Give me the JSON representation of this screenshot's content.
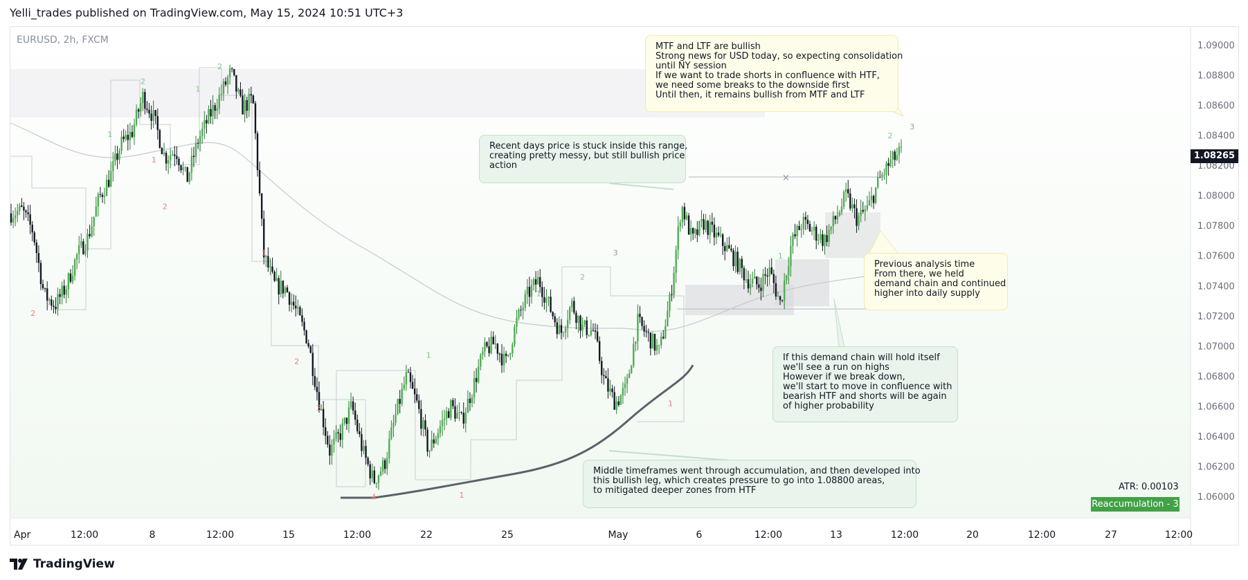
{
  "header": {
    "text": "Yelli_trades published on TradingView.com, May 15, 2024 10:51 UTC+3"
  },
  "symbol": {
    "text": "EURUSD, 2h, FXCM"
  },
  "footer": {
    "brand": "TradingView"
  },
  "price_badge": "1.08265",
  "atr": "ATR: 0.00103",
  "indicator_badge": "Reaccumulation - 3",
  "notes": {
    "mtf": "MTF and LTF are bullish\nStrong news for USD today, so expecting consolidation\nuntil NY session\nIf we want to trade shorts in confluence with HTF,\nwe need some breaks to the downside first\nUntil then, it remains bullish from MTF and LTF",
    "range": "Recent days price is stuck inside this range,\ncreating pretty messy, but still bullish price\naction",
    "previous": "Previous analysis time\nFrom there, we held\ndemand chain and continued\nhigher into daily supply",
    "demand": "If this demand chain will hold itself\nwe'll see a run on highs\nHowever if we break down,\nwe'll start to move in confluence with\nbearish HTF and shorts will be again\nof higher probability",
    "middle": "Middle timeframes went through accumulation, and then developed into\nthis bullish leg, which creates pressure to go into 1.08800 areas,\nto mitigated deeper zones from HTF"
  },
  "colors": {
    "up": "#2e7d32",
    "down": "#131722",
    "wave_green": "#81c784",
    "wave_red": "#ef7b7b",
    "badge_green": "#43a047"
  },
  "chart_data": {
    "type": "candlestick",
    "title": "EURUSD, 2h, FXCM",
    "ylim": [
      1.0585,
      1.0915
    ],
    "y_ticks": [
      "1.09000",
      "1.08800",
      "1.08600",
      "1.08400",
      "1.08200",
      "1.08000",
      "1.07800",
      "1.07600",
      "1.07400",
      "1.07200",
      "1.07000",
      "1.06800",
      "1.06600",
      "1.06400",
      "1.06200",
      "1.06000"
    ],
    "x_ticks": [
      "Apr",
      "12:00",
      "8",
      "12:00",
      "15",
      "12:00",
      "22",
      "25",
      "May",
      "6",
      "12:00",
      "13",
      "12:00",
      "20",
      "12:00",
      "27",
      "12:00"
    ],
    "path_points": [
      1.0788,
      1.079,
      1.0776,
      1.0734,
      1.0727,
      1.0739,
      1.076,
      1.0772,
      1.0798,
      1.0812,
      1.0834,
      1.0842,
      1.0866,
      1.0851,
      1.0825,
      1.083,
      1.081,
      1.0836,
      1.0852,
      1.0866,
      1.0882,
      1.0858,
      1.0864,
      1.076,
      1.074,
      1.0738,
      1.0722,
      1.0704,
      1.0664,
      1.063,
      1.0642,
      1.066,
      1.063,
      1.061,
      1.0622,
      1.0654,
      1.068,
      1.066,
      1.063,
      1.0646,
      1.066,
      1.065,
      1.0672,
      1.0696,
      1.0702,
      1.0688,
      1.0716,
      1.0734,
      1.0744,
      1.0726,
      1.0708,
      1.0728,
      1.0712,
      1.071,
      1.0676,
      1.0662,
      1.0672,
      1.0716,
      1.0706,
      1.0696,
      1.0732,
      1.0794,
      1.077,
      1.0782,
      1.0774,
      1.0766,
      1.0756,
      1.0744,
      1.074,
      1.075,
      1.0728,
      1.0768,
      1.0782,
      1.0776,
      1.077,
      1.0784,
      1.08,
      1.0784,
      1.0792,
      1.081,
      1.0822,
      1.0829
    ],
    "waves": [
      {
        "label": "2",
        "price": 1.0874,
        "x_index": 12,
        "color": "green"
      },
      {
        "label": "1",
        "price": 1.0839,
        "x_index": 9,
        "color": "green"
      },
      {
        "label": "1",
        "price": 1.0822,
        "x_index": 13,
        "color": "red"
      },
      {
        "label": "2",
        "price": 1.0791,
        "x_index": 14,
        "color": "red"
      },
      {
        "label": "1",
        "price": 1.0869,
        "x_index": 17,
        "color": "green"
      },
      {
        "label": "2",
        "price": 1.0884,
        "x_index": 19,
        "color": "green"
      },
      {
        "label": "2",
        "price": 1.072,
        "x_index": 2,
        "color": "red"
      },
      {
        "label": "1",
        "price": 1.076,
        "x_index": 23,
        "color": "red"
      },
      {
        "label": "2",
        "price": 1.0688,
        "x_index": 26,
        "color": "red"
      },
      {
        "label": "3",
        "price": 1.0657,
        "x_index": 28,
        "color": "red"
      },
      {
        "label": "4",
        "price": 1.0598,
        "x_index": 33,
        "color": "red"
      },
      {
        "label": "1",
        "price": 1.0692,
        "x_index": 38,
        "color": "green"
      },
      {
        "label": "1",
        "price": 1.0599,
        "x_index": 41,
        "color": "red"
      },
      {
        "label": "1",
        "price": 1.0733,
        "x_index": 48,
        "color": "green"
      },
      {
        "label": "2",
        "price": 1.0744,
        "x_index": 52,
        "color": "green"
      },
      {
        "label": "3",
        "price": 1.076,
        "x_index": 55,
        "color": "gray"
      },
      {
        "label": "1",
        "price": 1.066,
        "x_index": 60,
        "color": "red"
      },
      {
        "label": "1",
        "price": 1.0758,
        "x_index": 70,
        "color": "green"
      },
      {
        "label": "2",
        "price": 1.0838,
        "x_index": 80,
        "color": "green"
      },
      {
        "label": "3",
        "price": 1.0844,
        "x_index": 82,
        "color": "gray"
      }
    ]
  }
}
